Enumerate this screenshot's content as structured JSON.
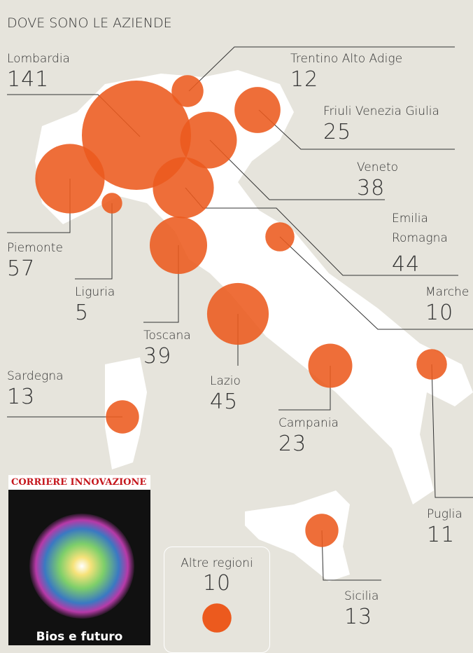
{
  "title": "DOVE SONO LE AZIENDE",
  "regions": [
    {
      "name": "Lombardia",
      "value": 141
    },
    {
      "name": "Trentino Alto Adige",
      "value": 12
    },
    {
      "name": "Friuli Venezia Giulia",
      "value": 25
    },
    {
      "name": "Veneto",
      "value": 38
    },
    {
      "name": "Emilia Romagna",
      "value": 44
    },
    {
      "name": "Marche",
      "value": 10
    },
    {
      "name": "Piemonte",
      "value": 57
    },
    {
      "name": "Liguria",
      "value": 5
    },
    {
      "name": "Toscana",
      "value": 39
    },
    {
      "name": "Lazio",
      "value": 45
    },
    {
      "name": "Sardegna",
      "value": 13
    },
    {
      "name": "Campania",
      "value": 23
    },
    {
      "name": "Puglia",
      "value": 11
    },
    {
      "name": "Sicilia",
      "value": 13
    }
  ],
  "other": {
    "name": "Altre regioni",
    "value": 10
  },
  "cover": {
    "masthead": "CORRIERE INNOVAZIONE",
    "headline": "Bios e futuro"
  }
}
